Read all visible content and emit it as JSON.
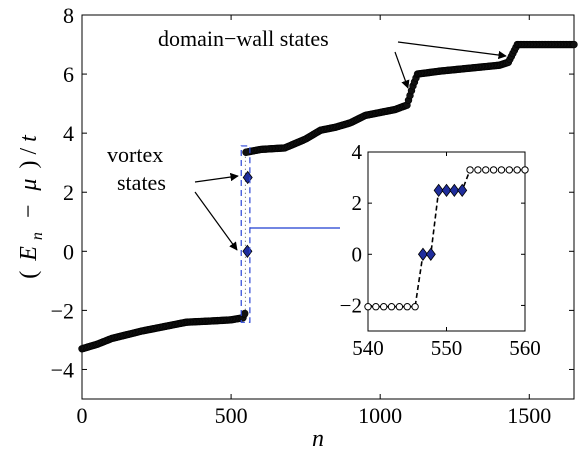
{
  "chart_data": [
    {
      "type": "scatter",
      "panel": "main",
      "xlabel": "n",
      "ylabel": "(E_n − μ)/t",
      "xlim": [
        0,
        1650
      ],
      "ylim": [
        -5,
        8
      ],
      "xticks": [
        "0",
        "500",
        "1000",
        "1500"
      ],
      "yticks": [
        "−4",
        "−2",
        "0",
        "2",
        "4",
        "6",
        "8"
      ],
      "ylabel_parts": {
        "open": "(",
        "E": "E",
        "sub": "n",
        "minus": "−",
        "mu": "μ",
        "close": ")",
        "slash": "/",
        "t": "t"
      },
      "curve_anchors": [
        [
          0,
          -3.3
        ],
        [
          50,
          -3.15
        ],
        [
          100,
          -2.95
        ],
        [
          200,
          -2.7
        ],
        [
          300,
          -2.5
        ],
        [
          350,
          -2.4
        ],
        [
          450,
          -2.35
        ],
        [
          500,
          -2.32
        ],
        [
          540,
          -2.25
        ],
        [
          546,
          -2.1
        ],
        [
          548,
          3.35
        ],
        [
          600,
          3.45
        ],
        [
          680,
          3.5
        ],
        [
          750,
          3.8
        ],
        [
          800,
          4.1
        ],
        [
          850,
          4.2
        ],
        [
          900,
          4.35
        ],
        [
          950,
          4.6
        ],
        [
          1000,
          4.7
        ],
        [
          1050,
          4.8
        ],
        [
          1090,
          4.95
        ],
        [
          1110,
          5.6
        ],
        [
          1125,
          6.0
        ],
        [
          1200,
          6.1
        ],
        [
          1300,
          6.2
        ],
        [
          1400,
          6.3
        ],
        [
          1430,
          6.4
        ],
        [
          1450,
          6.8
        ],
        [
          1460,
          7.0
        ],
        [
          1650,
          7.0
        ]
      ],
      "vortex_states": [
        [
          548,
          0.0
        ],
        [
          549,
          2.5
        ]
      ],
      "selection_box": {
        "x": [
          534,
          563
        ],
        "y": [
          -2.2,
          3.5
        ]
      },
      "annotations": {
        "domain_wall": "domain−wall states",
        "vortex_line1": "vortex",
        "vortex_line2": "states"
      },
      "colors": {
        "points": "#000000",
        "vortex": "#1f2d9c",
        "box": "#2a45d8",
        "arrow": "#1f3fd0"
      }
    },
    {
      "type": "scatter",
      "panel": "inset",
      "xlim": [
        540,
        560
      ],
      "ylim": [
        -3,
        4
      ],
      "xticks": [
        "540",
        "550",
        "560"
      ],
      "yticks": [
        "−2",
        "0",
        "2",
        "4"
      ],
      "points": [
        [
          540,
          -2.05
        ],
        [
          541,
          -2.05
        ],
        [
          542,
          -2.05
        ],
        [
          543,
          -2.05
        ],
        [
          544,
          -2.05
        ],
        [
          545,
          -2.05
        ],
        [
          546,
          -2.05
        ],
        [
          547,
          0.0
        ],
        [
          548,
          0.0
        ],
        [
          549,
          2.5
        ],
        [
          550,
          2.5
        ],
        [
          551,
          2.5
        ],
        [
          552,
          2.5
        ],
        [
          553,
          3.3
        ],
        [
          554,
          3.3
        ],
        [
          555,
          3.3
        ],
        [
          556,
          3.3
        ],
        [
          557,
          3.3
        ],
        [
          558,
          3.3
        ],
        [
          559,
          3.3
        ],
        [
          560,
          3.3
        ]
      ],
      "vortex_indices": [
        7,
        8,
        9,
        10,
        11,
        12
      ]
    }
  ]
}
